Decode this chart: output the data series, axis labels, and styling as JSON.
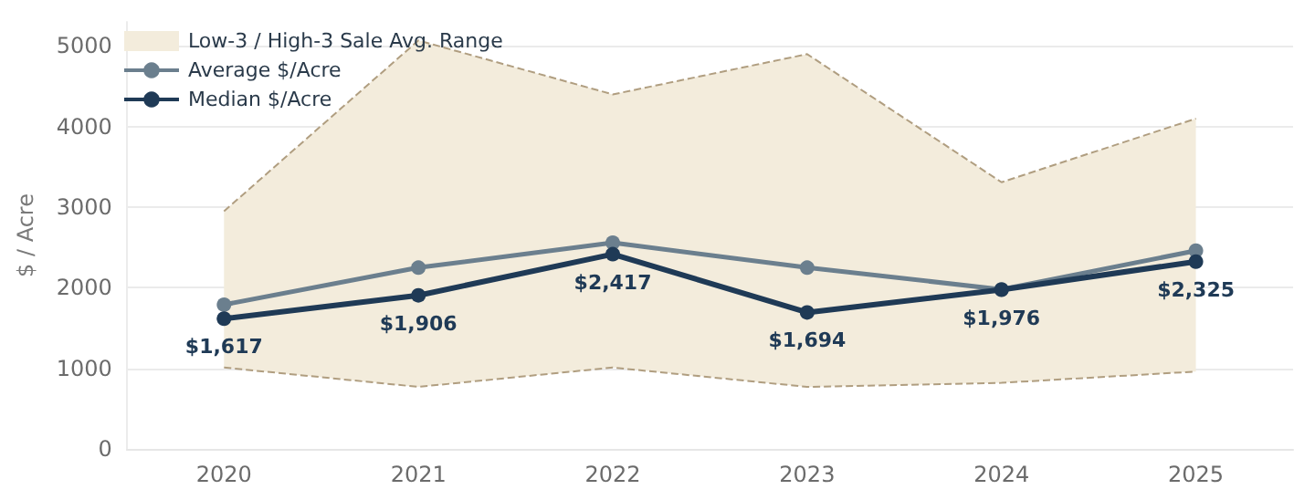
{
  "chart_data": {
    "type": "line",
    "ylabel": "$ / Acre",
    "categories": [
      "2020",
      "2021",
      "2022",
      "2023",
      "2024",
      "2025"
    ],
    "ylim": [
      0,
      5300
    ],
    "yticks": [
      0,
      1000,
      2000,
      3000,
      4000,
      5000
    ],
    "grid": "y",
    "legend": "top left",
    "marker": "circle",
    "series": [
      {
        "color": "#b09e80",
        "line_style": "dashed",
        "marker": "none",
        "values": [
          1010,
          770,
          1010,
          770,
          820,
          960
        ]
      },
      {
        "type": "area",
        "name": "Low-3 / High-3 Sale Avg. Range",
        "color": "#f3ecdc",
        "marker": "none",
        "values": [
          2950,
          5070,
          4400,
          4900,
          3310,
          4100
        ]
      },
      {
        "name": "Average $/Acre",
        "color": "#6b7f8e",
        "values": [
          1790,
          2250,
          2560,
          2250,
          1980,
          2460
        ]
      },
      {
        "name": "Median $/Acre",
        "color": "#1f3a56",
        "values": [
          1617,
          1906,
          2417,
          1694,
          1976,
          2325
        ],
        "value_labels": [
          "$1,617",
          "$1,906",
          "$2,417",
          "$1,694",
          "$1,976",
          "$2,325"
        ]
      }
    ]
  }
}
